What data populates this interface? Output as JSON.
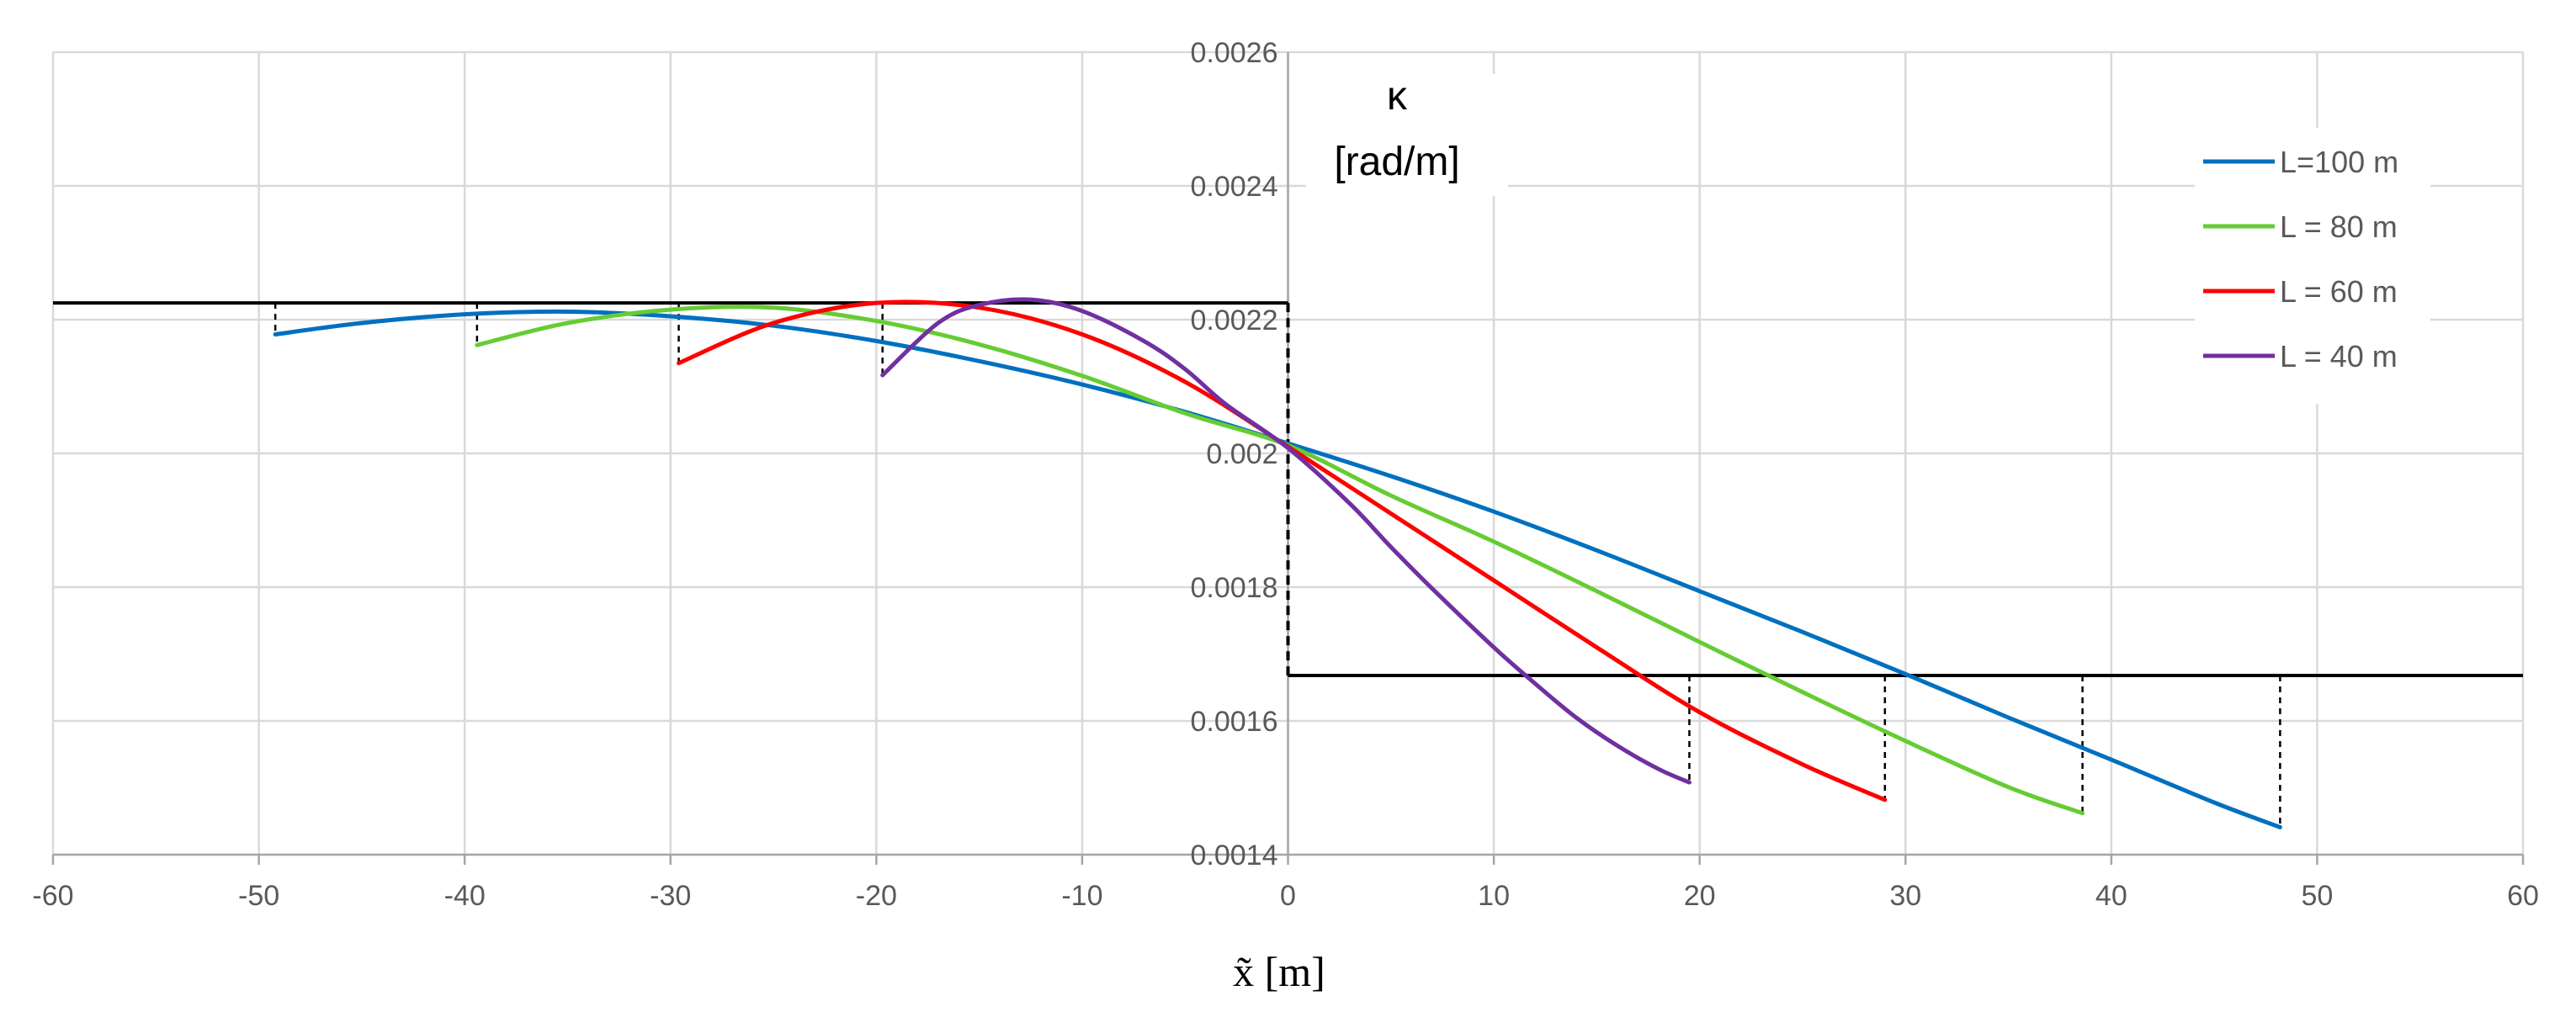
{
  "chart_data": {
    "type": "line",
    "title": "",
    "xlabel": "x̃ [m]",
    "ylabel_line1": "κ",
    "ylabel_line2": "[rad/m]",
    "xlim": [
      -60,
      60
    ],
    "ylim": [
      0.0014,
      0.0026
    ],
    "x_ticks": [
      -60,
      -50,
      -40,
      -30,
      -20,
      -10,
      0,
      10,
      20,
      30,
      40,
      50,
      60
    ],
    "x_tick_labels": [
      "-60",
      "-50",
      "-40",
      "-30",
      "-20",
      "-10",
      "0",
      "10",
      "20",
      "30",
      "40",
      "50",
      "60"
    ],
    "y_ticks": [
      0.0014,
      0.0016,
      0.0018,
      0.002,
      0.0022,
      0.0024,
      0.0026
    ],
    "y_tick_labels": [
      "0.0014",
      "0.0016",
      "0.0018",
      "0.002",
      "0.0022",
      "0.0024",
      "0.0026"
    ],
    "grid": true,
    "legend_position": "top-right",
    "reference_lines": {
      "upper_level": 0.002225,
      "lower_level": 0.001668,
      "step_x": 0,
      "color": "#000000"
    },
    "series": [
      {
        "name": "L=100 m",
        "color": "#0070C0",
        "x": [
          -49.2,
          -45,
          -40,
          -35,
          -30,
          -25,
          -20,
          -15,
          -10,
          -5,
          0,
          5,
          10,
          15,
          20,
          25,
          30,
          35,
          40,
          45,
          48.2
        ],
        "y": [
          0.002178,
          0.002195,
          0.002208,
          0.002212,
          0.002205,
          0.002191,
          0.002168,
          0.002138,
          0.002103,
          0.002062,
          0.002015,
          0.001966,
          0.001913,
          0.001855,
          0.001794,
          0.001733,
          0.00167,
          0.001605,
          0.001542,
          0.001478,
          0.001441
        ]
      },
      {
        "name": "L = 80 m",
        "color": "#66CC33",
        "x": [
          -39.4,
          -35,
          -30,
          -25,
          -20,
          -15,
          -10,
          -5,
          0,
          5,
          10,
          15,
          20,
          25,
          30,
          35,
          38.6
        ],
        "y": [
          0.002162,
          0.002195,
          0.002215,
          0.002218,
          0.002198,
          0.002163,
          0.002116,
          0.00206,
          0.002012,
          0.001937,
          0.001868,
          0.001794,
          0.001718,
          0.001643,
          0.00157,
          0.001501,
          0.001462
        ]
      },
      {
        "name": "L = 60 m",
        "color": "#FF0000",
        "x": [
          -29.6,
          -25,
          -20,
          -15,
          -10,
          -5,
          0,
          5,
          10,
          15,
          20,
          25,
          29
        ],
        "y": [
          0.002135,
          0.002195,
          0.002225,
          0.002218,
          0.002178,
          0.002107,
          0.00201,
          0.00191,
          0.00181,
          0.00171,
          0.001613,
          0.001535,
          0.001482
        ]
      },
      {
        "name": "L = 40 m",
        "color": "#7030A0",
        "x": [
          -19.7,
          -17,
          -15,
          -12.5,
          -10,
          -7,
          -5,
          -3,
          0,
          3,
          5,
          7,
          10,
          12,
          14,
          16,
          18,
          19.5
        ],
        "y": [
          0.002117,
          0.002195,
          0.002222,
          0.00223,
          0.002213,
          0.002168,
          0.002126,
          0.002073,
          0.002008,
          0.001925,
          0.00186,
          0.001798,
          0.00171,
          0.001656,
          0.001605,
          0.001563,
          0.001528,
          0.001508
        ]
      }
    ]
  }
}
